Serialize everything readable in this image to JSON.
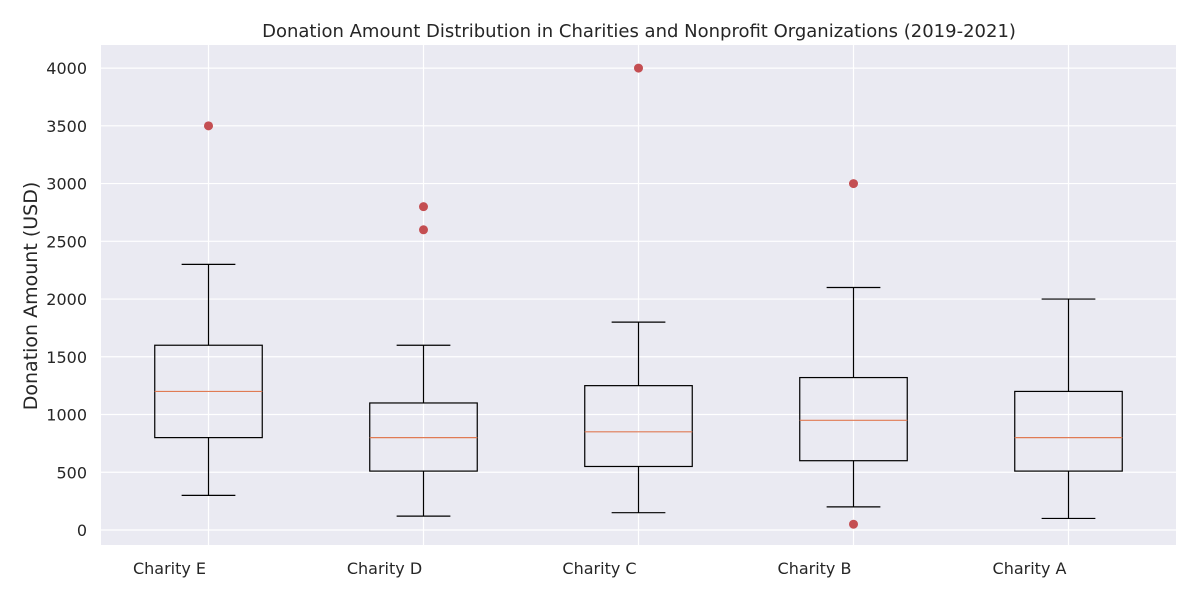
{
  "chart_data": {
    "type": "box",
    "title": "Donation Amount Distribution in Charities and Nonprofit Organizations (2019-2021)",
    "xlabel": "",
    "ylabel": "Donation Amount (USD)",
    "ylim": [
      -130,
      4200
    ],
    "yticks": [
      0,
      500,
      1000,
      1500,
      2000,
      2500,
      3000,
      3500,
      4000
    ],
    "grid": true,
    "categories": [
      "Charity E",
      "Charity D",
      "Charity C",
      "Charity B",
      "Charity A"
    ],
    "boxes": [
      {
        "category": "Charity E",
        "whisker_low": 300,
        "q1": 800,
        "median": 1200,
        "q3": 1600,
        "whisker_high": 2300,
        "outliers": [
          3500
        ]
      },
      {
        "category": "Charity D",
        "whisker_low": 120,
        "q1": 510,
        "median": 800,
        "q3": 1100,
        "whisker_high": 1600,
        "outliers": [
          2800,
          2600
        ]
      },
      {
        "category": "Charity C",
        "whisker_low": 150,
        "q1": 550,
        "median": 850,
        "q3": 1250,
        "whisker_high": 1800,
        "outliers": [
          4000
        ]
      },
      {
        "category": "Charity B",
        "whisker_low": 200,
        "q1": 600,
        "median": 950,
        "q3": 1320,
        "whisker_high": 2100,
        "outliers": [
          3000,
          50
        ]
      },
      {
        "category": "Charity A",
        "whisker_low": 100,
        "q1": 510,
        "median": 800,
        "q3": 1200,
        "whisker_high": 2000,
        "outliers": []
      }
    ],
    "colors": {
      "background": "#eaeaf2",
      "grid": "#ffffff",
      "box": "#000000",
      "median": "#e07b54",
      "outlier": "#c44e52"
    }
  }
}
